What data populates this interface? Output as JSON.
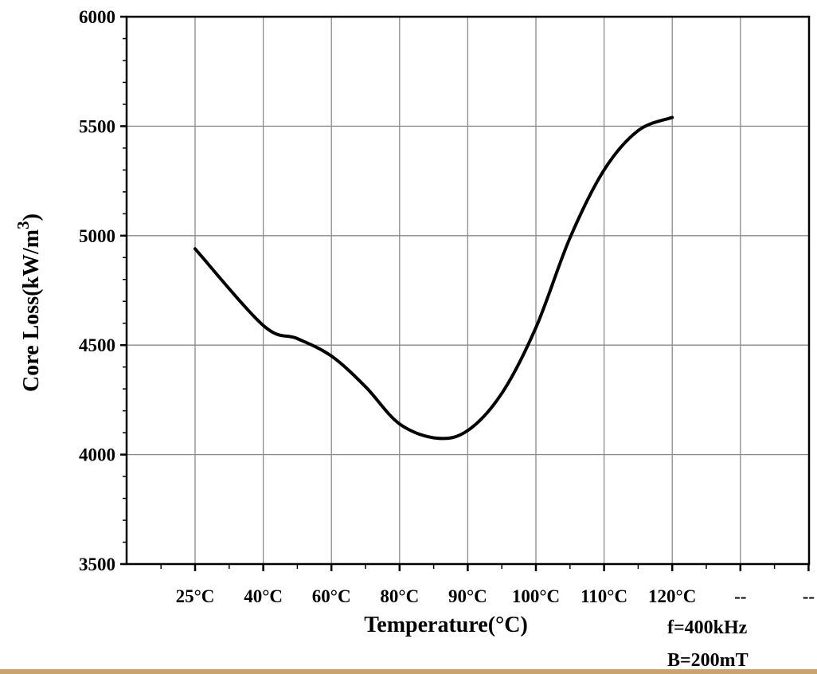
{
  "chart_data": {
    "type": "line",
    "categories": [
      "25°C",
      "40°C",
      "60°C",
      "80°C",
      "90°C",
      "100°C",
      "110°C",
      "120°C",
      "--",
      "--"
    ],
    "series": [
      {
        "values": [
          4940,
          4590,
          4450,
          4140,
          4110,
          4580,
          5300,
          5540,
          null,
          null
        ]
      }
    ],
    "curve_detail": [
      {
        "x_index": 0,
        "y": 4940
      },
      {
        "x_index": 1,
        "y": 4590
      },
      {
        "x_index": 1.5,
        "y": 4530
      },
      {
        "x_index": 2,
        "y": 4450
      },
      {
        "x_index": 2.5,
        "y": 4310
      },
      {
        "x_index": 3,
        "y": 4140
      },
      {
        "x_index": 3.55,
        "y": 4075
      },
      {
        "x_index": 4,
        "y": 4110
      },
      {
        "x_index": 4.5,
        "y": 4280
      },
      {
        "x_index": 5,
        "y": 4580
      },
      {
        "x_index": 5.5,
        "y": 4990
      },
      {
        "x_index": 6,
        "y": 5300
      },
      {
        "x_index": 6.5,
        "y": 5480
      },
      {
        "x_index": 7,
        "y": 5540
      }
    ],
    "xlabel": "Temperature(°C)",
    "ylabel": "Core Loss(kW/m",
    "ylabel_superscript": "3",
    "ylabel_close": ")",
    "ylim": [
      3500,
      6000
    ],
    "yticks": [
      3500,
      4000,
      4500,
      5000,
      5500,
      6000
    ],
    "grid": true,
    "annotations": [
      "f=400kHz",
      "B=200mT"
    ],
    "line_color": "#000000"
  }
}
